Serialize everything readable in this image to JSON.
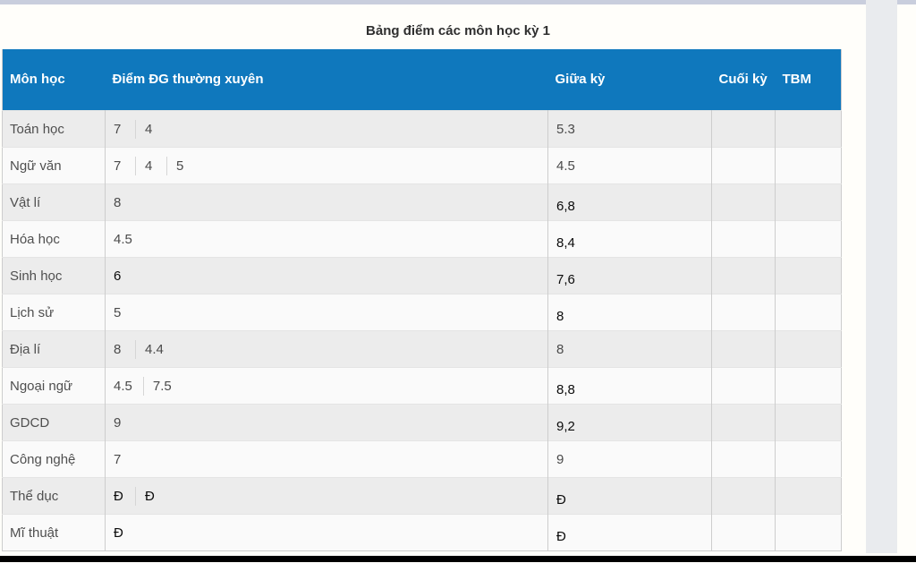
{
  "page": {
    "title": "Bảng điểm các môn học kỳ 1"
  },
  "colors": {
    "header_bg": "#0f78bd",
    "top_bar": "#c9cedd",
    "stripe_odd": "#ececec",
    "stripe_even": "#fafafa",
    "normal_text": "#4a4a4a",
    "entered_text": "#0b0b0b",
    "scroll_strip": "#e9ebee",
    "bottom_bar": "#000000"
  },
  "table": {
    "columns": [
      {
        "key": "subject",
        "label": "Môn học"
      },
      {
        "key": "regular",
        "label": "Điểm ĐG thường xuyên"
      },
      {
        "key": "midterm",
        "label": "Giữa kỳ"
      },
      {
        "key": "final",
        "label": "Cuối kỳ"
      },
      {
        "key": "tbm",
        "label": "TBM"
      }
    ],
    "rows": [
      {
        "subject": "Toán học",
        "regular": [
          {
            "value": "7",
            "entered": false
          },
          {
            "value": "4",
            "entered": false
          }
        ],
        "midterm": {
          "value": "5.3",
          "entered": false
        },
        "final": "",
        "tbm": ""
      },
      {
        "subject": "Ngữ văn",
        "regular": [
          {
            "value": "7",
            "entered": false
          },
          {
            "value": "4",
            "entered": false
          },
          {
            "value": "5",
            "entered": false
          }
        ],
        "midterm": {
          "value": "4.5",
          "entered": false
        },
        "final": "",
        "tbm": ""
      },
      {
        "subject": "Vật lí",
        "regular": [
          {
            "value": "8",
            "entered": false
          }
        ],
        "midterm": {
          "value": "6,8",
          "entered": true
        },
        "final": "",
        "tbm": ""
      },
      {
        "subject": "Hóa học",
        "regular": [
          {
            "value": "4.5",
            "entered": false
          }
        ],
        "midterm": {
          "value": "8,4",
          "entered": true
        },
        "final": "",
        "tbm": ""
      },
      {
        "subject": "Sinh học",
        "regular": [
          {
            "value": "6",
            "entered": true
          }
        ],
        "midterm": {
          "value": "7,6",
          "entered": true
        },
        "final": "",
        "tbm": ""
      },
      {
        "subject": "Lịch sử",
        "regular": [
          {
            "value": "5",
            "entered": false
          }
        ],
        "midterm": {
          "value": "8",
          "entered": true
        },
        "final": "",
        "tbm": ""
      },
      {
        "subject": "Địa lí",
        "regular": [
          {
            "value": "8",
            "entered": false
          },
          {
            "value": "4.4",
            "entered": false
          }
        ],
        "midterm": {
          "value": "8",
          "entered": false
        },
        "final": "",
        "tbm": ""
      },
      {
        "subject": "Ngoại ngữ",
        "regular": [
          {
            "value": "4.5",
            "entered": false
          },
          {
            "value": "7.5",
            "entered": false
          }
        ],
        "midterm": {
          "value": "8,8",
          "entered": true
        },
        "final": "",
        "tbm": ""
      },
      {
        "subject": "GDCD",
        "regular": [
          {
            "value": "9",
            "entered": false
          }
        ],
        "midterm": {
          "value": "9,2",
          "entered": true
        },
        "final": "",
        "tbm": ""
      },
      {
        "subject": "Công nghệ",
        "regular": [
          {
            "value": "7",
            "entered": false
          }
        ],
        "midterm": {
          "value": "9",
          "entered": false
        },
        "final": "",
        "tbm": ""
      },
      {
        "subject": "Thể dục",
        "regular": [
          {
            "value": "Đ",
            "entered": true
          },
          {
            "value": "Đ",
            "entered": true
          }
        ],
        "midterm": {
          "value": "Đ",
          "entered": true
        },
        "final": "",
        "tbm": ""
      },
      {
        "subject": "Mĩ thuật",
        "regular": [
          {
            "value": "Đ",
            "entered": true
          }
        ],
        "midterm": {
          "value": "Đ",
          "entered": true
        },
        "final": "",
        "tbm": ""
      }
    ]
  }
}
